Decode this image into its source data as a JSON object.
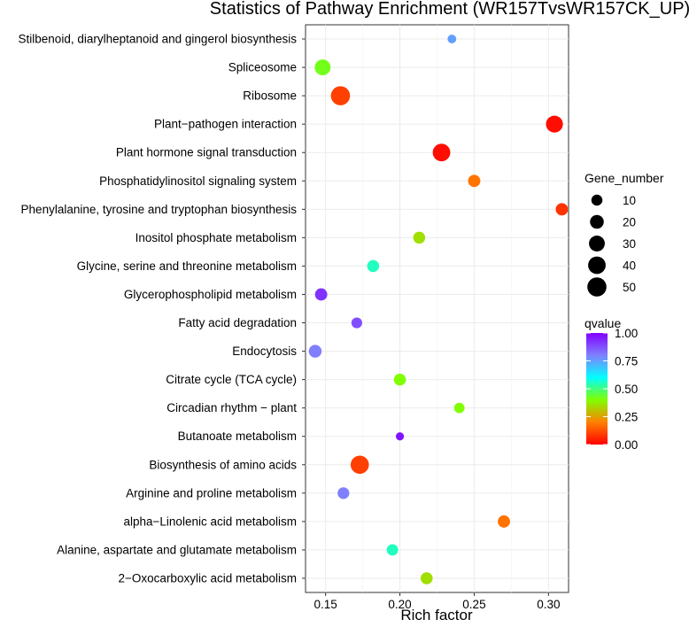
{
  "chart_data": {
    "type": "scatter",
    "title": "Statistics of Pathway Enrichment (WR157TvsWR157CK_UP)",
    "xlabel": "Rich factor",
    "ylabel": "",
    "xlim": [
      0.1365,
      0.3135
    ],
    "x_ticks": [
      0.15,
      0.2,
      0.25,
      0.3
    ],
    "x_tick_labels": [
      "0.15",
      "0.20",
      "0.25",
      "0.30"
    ],
    "grid": true,
    "categories": [
      "Stilbenoid, diarylheptanoid and gingerol biosynthesis",
      "Spliceosome",
      "Ribosome",
      "Plant−pathogen interaction",
      "Plant hormone signal transduction",
      "Phosphatidylinositol signaling system",
      "Phenylalanine, tyrosine and tryptophan biosynthesis",
      "Inositol phosphate metabolism",
      "Glycine, serine and threonine metabolism",
      "Glycerophospholipid metabolism",
      "Fatty acid degradation",
      "Endocytosis",
      "Citrate cycle (TCA cycle)",
      "Circadian rhythm − plant",
      "Butanoate metabolism",
      "Biosynthesis of amino acids",
      "Arginine and proline metabolism",
      "alpha−Linolenic acid metabolism",
      "Alanine, aspartate and glutamate metabolism",
      "2−Oxocarboxylic acid metabolism"
    ],
    "points": [
      {
        "pathway": "Stilbenoid, diarylheptanoid and gingerol biosynthesis",
        "rich_factor": 0.235,
        "gene_number": 4,
        "qvalue": 0.75
      },
      {
        "pathway": "Spliceosome",
        "rich_factor": 0.148,
        "gene_number": 30,
        "qvalue": 0.42
      },
      {
        "pathway": "Ribosome",
        "rich_factor": 0.16,
        "gene_number": 50,
        "qvalue": 0.1
      },
      {
        "pathway": "Plant−pathogen interaction",
        "rich_factor": 0.304,
        "gene_number": 36,
        "qvalue": 0.02
      },
      {
        "pathway": "Plant hormone signal transduction",
        "rich_factor": 0.228,
        "gene_number": 40,
        "qvalue": 0.02
      },
      {
        "pathway": "Phosphatidylinositol signaling system",
        "rich_factor": 0.25,
        "gene_number": 14,
        "qvalue": 0.18
      },
      {
        "pathway": "Phenylalanine, tyrosine and tryptophan biosynthesis",
        "rich_factor": 0.309,
        "gene_number": 14,
        "qvalue": 0.08
      },
      {
        "pathway": "Inositol phosphate metabolism",
        "rich_factor": 0.213,
        "gene_number": 13,
        "qvalue": 0.35
      },
      {
        "pathway": "Glycine, serine and threonine metabolism",
        "rich_factor": 0.182,
        "gene_number": 13,
        "qvalue": 0.55
      },
      {
        "pathway": "Glycerophospholipid metabolism",
        "rich_factor": 0.147,
        "gene_number": 14,
        "qvalue": 0.92
      },
      {
        "pathway": "Fatty acid degradation",
        "rich_factor": 0.171,
        "gene_number": 9,
        "qvalue": 0.88
      },
      {
        "pathway": "Endocytosis",
        "rich_factor": 0.143,
        "gene_number": 16,
        "qvalue": 0.8
      },
      {
        "pathway": "Citrate cycle (TCA cycle)",
        "rich_factor": 0.2,
        "gene_number": 13,
        "qvalue": 0.4
      },
      {
        "pathway": "Circadian rhythm − plant",
        "rich_factor": 0.24,
        "gene_number": 8,
        "qvalue": 0.4
      },
      {
        "pathway": "Butanoate metabolism",
        "rich_factor": 0.2,
        "gene_number": 3,
        "qvalue": 0.97
      },
      {
        "pathway": "Biosynthesis of amino acids",
        "rich_factor": 0.173,
        "gene_number": 44,
        "qvalue": 0.1
      },
      {
        "pathway": "Arginine and proline metabolism",
        "rich_factor": 0.162,
        "gene_number": 12,
        "qvalue": 0.8
      },
      {
        "pathway": "alpha−Linolenic acid metabolism",
        "rich_factor": 0.27,
        "gene_number": 14,
        "qvalue": 0.18
      },
      {
        "pathway": "Alanine, aspartate and glutamate metabolism",
        "rich_factor": 0.195,
        "gene_number": 11,
        "qvalue": 0.55
      },
      {
        "pathway": "2−Oxocarboxylic acid metabolism",
        "rich_factor": 0.218,
        "gene_number": 13,
        "qvalue": 0.35
      }
    ],
    "size_legend": {
      "title": "Gene_number",
      "values": [
        10,
        20,
        30,
        40,
        50
      ],
      "labels": [
        "10",
        "20",
        "30",
        "40",
        "50"
      ]
    },
    "color_legend": {
      "title": "qvalue",
      "range": [
        0,
        1
      ],
      "ticks": [
        1.0,
        0.75,
        0.5,
        0.25,
        0.0
      ],
      "tick_labels": [
        "1.00",
        "0.75",
        "0.50",
        "0.25",
        "0.00"
      ],
      "colors": [
        "#ff0000",
        "#ff8000",
        "#80ff00",
        "#00ffff",
        "#8080ff",
        "#8000ff"
      ]
    },
    "point_color": "#000000",
    "background": "#ffffff",
    "grid_color": "#ebebeb"
  }
}
